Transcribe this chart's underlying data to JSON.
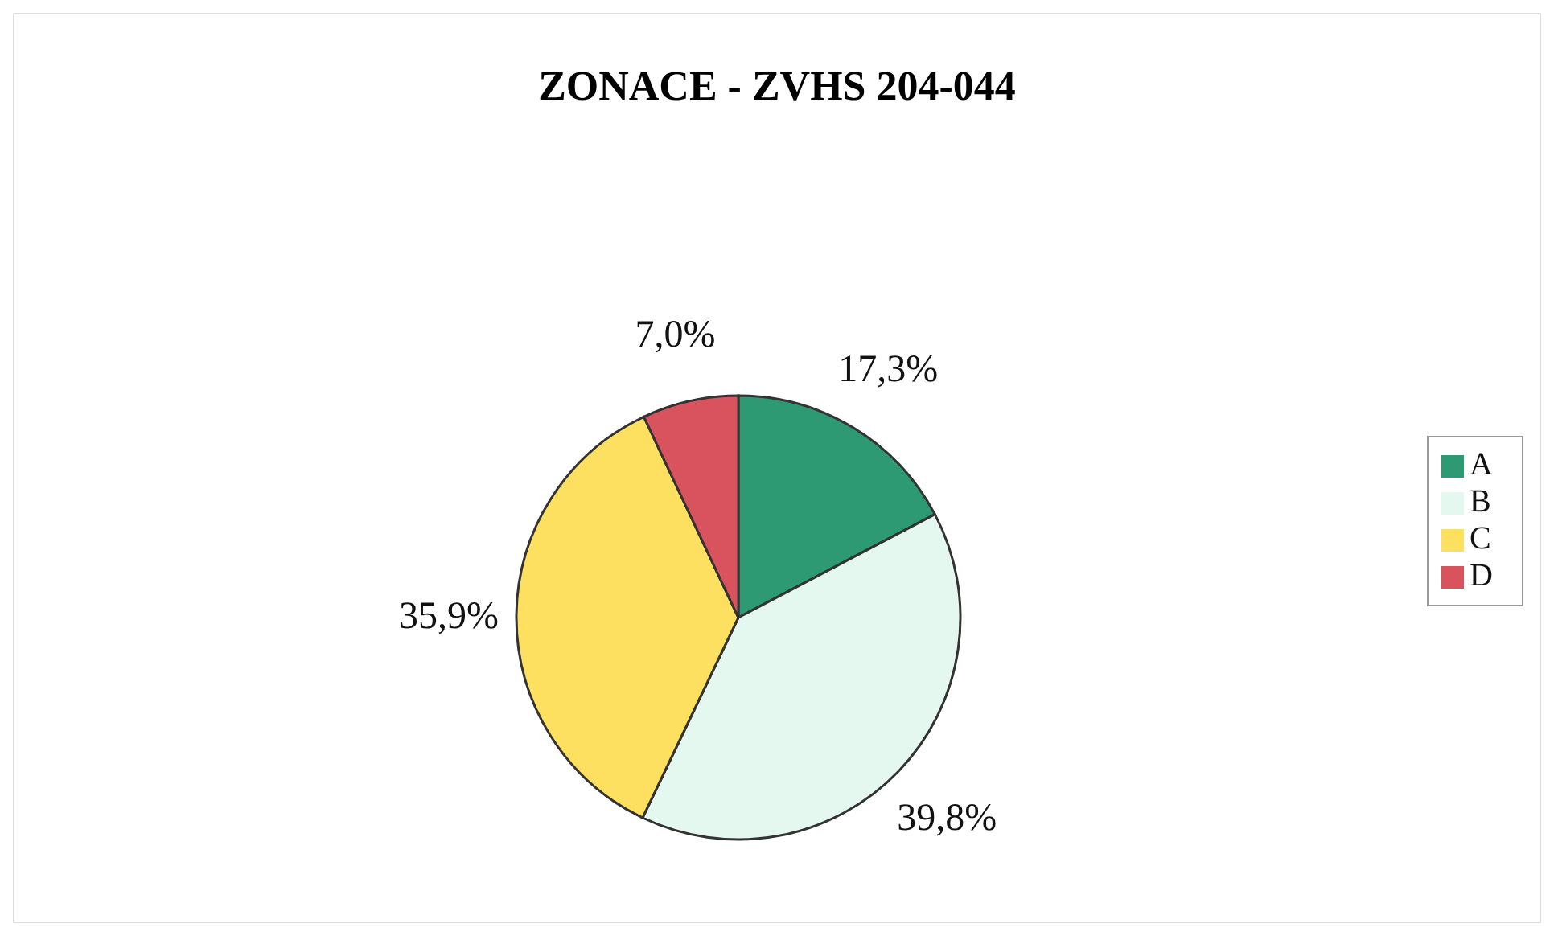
{
  "chart_data": {
    "type": "pie",
    "title": "ZONACE - ZVHS 204-044",
    "categories": [
      "A",
      "B",
      "C",
      "D"
    ],
    "values": [
      17.3,
      39.8,
      35.9,
      7.0
    ],
    "value_labels": [
      "17,3%",
      "39,8%",
      "35,9%",
      "7,0%"
    ],
    "colors": [
      "#2e9a74",
      "#e4f8ef",
      "#fde060",
      "#d9535f"
    ],
    "legend": "right"
  }
}
